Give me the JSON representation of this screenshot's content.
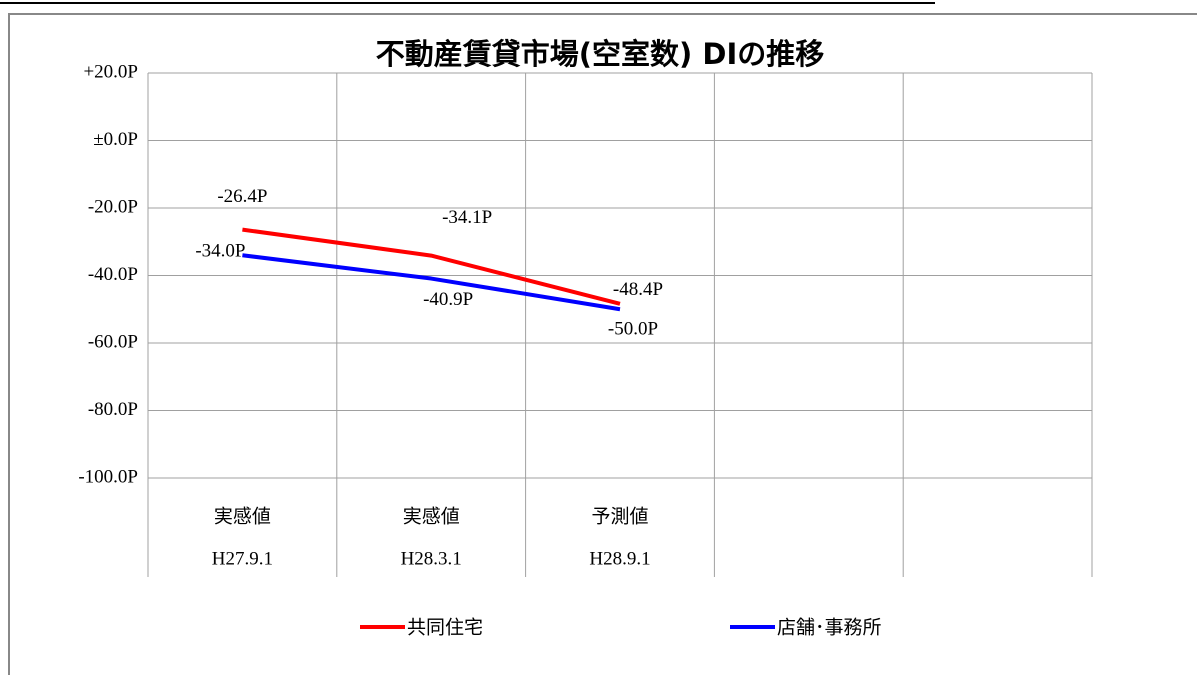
{
  "chart_data": {
    "type": "line",
    "title": "不動産賃貸市場(空室数) DIの推移",
    "categories": [
      "H27.9.1",
      "H28.3.1",
      "H28.9.1",
      null,
      null
    ],
    "category_groups": [
      "実感値",
      "実感値",
      "予測値",
      null,
      null
    ],
    "series": [
      {
        "name": "共同住宅",
        "color": "#ff0000",
        "values": [
          -26.4,
          -34.1,
          -48.4,
          null,
          null
        ],
        "value_labels": [
          "-26.4P",
          "-34.1P",
          "-48.4P",
          null,
          null
        ]
      },
      {
        "name": "店舗･事務所",
        "color": "#0000ff",
        "values": [
          -34.0,
          -40.9,
          -50.0,
          null,
          null
        ],
        "value_labels": [
          "-34.0P",
          "-40.9P",
          "-50.0P",
          null,
          null
        ]
      }
    ],
    "ylim": [
      -100,
      20
    ],
    "yticks": [
      {
        "value": 20,
        "label": "+20.0P"
      },
      {
        "value": 0,
        "label": "±0.0P"
      },
      {
        "value": -20,
        "label": "-20.0P"
      },
      {
        "value": -40,
        "label": "-40.0P"
      },
      {
        "value": -60,
        "label": "-60.0P"
      },
      {
        "value": -80,
        "label": "-80.0P"
      },
      {
        "value": -100,
        "label": "-100.0P"
      }
    ],
    "grid": true,
    "legend": "bottom"
  }
}
